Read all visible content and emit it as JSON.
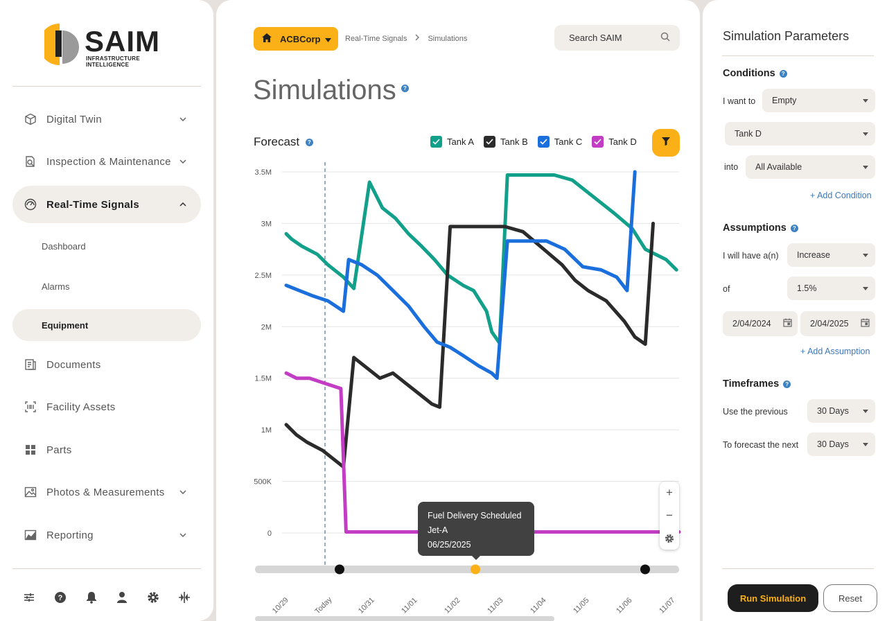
{
  "brand": {
    "name": "SAIM",
    "tagline": "INFRASTRUCTURE INTELLIGENCE"
  },
  "sidebar": {
    "items": [
      {
        "label": "Digital Twin",
        "icon": "cube-icon",
        "expandable": true
      },
      {
        "label": "Inspection & Maintenance",
        "icon": "inspection-icon",
        "expandable": true
      },
      {
        "label": "Real-Time Signals",
        "icon": "gauge-icon",
        "expandable": true,
        "expanded": true,
        "active": true
      },
      {
        "label": "Documents",
        "icon": "documents-icon",
        "expandable": false
      },
      {
        "label": "Facility Assets",
        "icon": "barcode-icon",
        "expandable": false
      },
      {
        "label": "Parts",
        "icon": "grid-icon",
        "expandable": false
      },
      {
        "label": "Photos & Measurements",
        "icon": "photo-icon",
        "expandable": true
      },
      {
        "label": "Reporting",
        "icon": "chart-icon",
        "expandable": true
      }
    ],
    "sub_items": [
      {
        "label": "Dashboard"
      },
      {
        "label": "Alarms"
      },
      {
        "label": "Equipment",
        "active": true
      }
    ],
    "bottom_icons": [
      "sliders-icon",
      "help-icon",
      "bell-icon",
      "user-icon",
      "settings-icon",
      "split-icon"
    ]
  },
  "header": {
    "org": "ACBCorp",
    "breadcrumb": [
      "Real-Time Signals",
      "Simulations"
    ],
    "search_label": "Search SAIM"
  },
  "page": {
    "title": "Simulations",
    "forecast_title": "Forecast"
  },
  "legend": [
    {
      "label": "Tank A",
      "color": "#13a08a",
      "checked": true
    },
    {
      "label": "Tank B",
      "color": "#2b2b2b",
      "checked": true
    },
    {
      "label": "Tank C",
      "color": "#1a6fdd",
      "checked": true
    },
    {
      "label": "Tank D",
      "color": "#c23cc4",
      "checked": true
    }
  ],
  "tooltip": {
    "line1": "Fuel Delivery Scheduled",
    "line2": "Jet-A",
    "line3": "06/25/2025"
  },
  "chart_data": {
    "type": "line",
    "title": "Forecast",
    "xlabel": "",
    "ylabel": "",
    "x_ticks": [
      "10/29",
      "Today",
      "10/31",
      "11/01",
      "11/02",
      "11/03",
      "11/04",
      "11/05",
      "11/06",
      "11/07"
    ],
    "y_ticks": [
      "0",
      "500K",
      "1M",
      "1.5M",
      "2M",
      "2.5M",
      "3M",
      "3.5M"
    ],
    "ylim": [
      0,
      3500000
    ],
    "today_marker": "Today",
    "grid": true,
    "series": [
      {
        "name": "Tank A",
        "color": "#13a08a",
        "x": [
          10.29,
          10.31,
          10.35,
          10.41,
          10.45,
          10.51,
          10.55,
          10.61,
          10.63,
          10.66,
          10.71,
          10.76,
          10.81,
          10.86,
          10.91,
          10.97,
          11.01,
          11.06,
          11.08,
          11.11,
          11.14,
          11.19,
          11.2,
          11.24,
          11.32,
          11.39,
          11.44,
          11.5,
          11.55,
          11.62,
          11.67,
          11.75,
          11.79
        ],
        "y": [
          2900000,
          2850000,
          2780000,
          2700000,
          2600000,
          2480000,
          2370000,
          3400000,
          3300000,
          3150000,
          3050000,
          2900000,
          2780000,
          2650000,
          2500000,
          2400000,
          2350000,
          2150000,
          1950000,
          1840000,
          3470000,
          3470000,
          3470000,
          3470000,
          3470000,
          3420000,
          3320000,
          3200000,
          3100000,
          2950000,
          2750000,
          2650000,
          2550000
        ]
      },
      {
        "name": "Tank B",
        "color": "#2b2b2b",
        "x": [
          10.29,
          10.33,
          10.37,
          10.43,
          10.47,
          10.51,
          10.55,
          10.6,
          10.65,
          10.7,
          10.75,
          10.8,
          10.85,
          10.88,
          10.92,
          11.0,
          11.05,
          11.13,
          11.2,
          11.28,
          11.35,
          11.4,
          11.45,
          11.52,
          11.59,
          11.63,
          11.67,
          11.7
        ],
        "y": [
          1050000,
          950000,
          880000,
          800000,
          720000,
          640000,
          1700000,
          1600000,
          1500000,
          1550000,
          1450000,
          1350000,
          1250000,
          1220000,
          2970000,
          2970000,
          2970000,
          2970000,
          2920000,
          2750000,
          2600000,
          2450000,
          2350000,
          2250000,
          2050000,
          1900000,
          1830000,
          3000000
        ]
      },
      {
        "name": "Tank C",
        "color": "#1a6fdd",
        "x": [
          10.29,
          10.34,
          10.39,
          10.45,
          10.51,
          10.53,
          10.58,
          10.64,
          10.7,
          10.76,
          10.82,
          10.87,
          10.92,
          10.97,
          11.03,
          11.08,
          11.1,
          11.14,
          11.2,
          11.29,
          11.36,
          11.43,
          11.5,
          11.56,
          11.6,
          11.63
        ],
        "y": [
          2400000,
          2350000,
          2300000,
          2250000,
          2150000,
          2650000,
          2600000,
          2500000,
          2350000,
          2200000,
          2000000,
          1850000,
          1800000,
          1720000,
          1620000,
          1550000,
          1500000,
          2830000,
          2830000,
          2830000,
          2750000,
          2580000,
          2550000,
          2480000,
          2350000,
          3500000
        ]
      },
      {
        "name": "Tank D",
        "color": "#c23cc4",
        "x": [
          10.29,
          10.33,
          10.38,
          10.44,
          10.5,
          10.52,
          10.6,
          11.0,
          11.5,
          11.8
        ],
        "y": [
          1550000,
          1500000,
          1500000,
          1450000,
          1400000,
          10000,
          10000,
          10000,
          10000,
          10000
        ]
      }
    ],
    "timeline_events": [
      {
        "at": "Today"
      },
      {
        "at": "06/25/2025",
        "highlighted": true
      },
      {
        "at": "11/06"
      }
    ]
  },
  "panel": {
    "title": "Simulation Parameters",
    "conditions": {
      "heading": "Conditions",
      "want_label": "I want to",
      "want_value": "Empty",
      "target_value": "Tank D",
      "into_label": "into",
      "into_value": "All Available",
      "add_label": "+ Add Condition"
    },
    "assumptions": {
      "heading": "Assumptions",
      "have_label": "I will have a(n)",
      "have_value": "Increase",
      "of_label": "of",
      "of_value": "1.5%",
      "date_from": "2/04/2024",
      "date_to": "2/04/2025",
      "add_label": "+ Add Assumption"
    },
    "timeframes": {
      "heading": "Timeframes",
      "previous_label": "Use the previous",
      "previous_value": "30 Days",
      "next_label": "To forecast the next",
      "next_value": "30 Days"
    },
    "run_label": "Run Simulation",
    "reset_label": "Reset"
  }
}
